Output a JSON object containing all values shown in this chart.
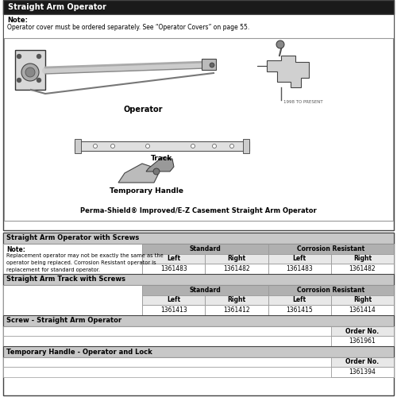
{
  "title": "Straight Arm Operator",
  "note_label": "Note:",
  "note_text": "Operator cover must be ordered separately. See “Operator Covers” on page 55.",
  "image_caption": "Perma-Shield® Improved/E-Z Casement Straight Arm Operator",
  "operator_label": "Operator",
  "track_label": "Track",
  "handle_label": "Temporary Handle",
  "year_label": "1998 TO PRESENT",
  "table1_title": "Straight Arm Operator with Screws",
  "table1_note_label": "Note:",
  "table1_note_lines": [
    "Replacement operator may not be exactly the same as the",
    "operator being replaced. Corrosion Resistant operator is",
    "replacement for standard operator."
  ],
  "table1_col_headers": [
    "Standard",
    "Corrosion Resistant"
  ],
  "table1_sub_headers": [
    "Left",
    "Right",
    "Left",
    "Right"
  ],
  "table1_values": [
    "1361483",
    "1361482",
    "1361483",
    "1361482"
  ],
  "table2_title": "Straight Arm Track with Screws",
  "table2_col_headers": [
    "Standard",
    "Corrosion Resistant"
  ],
  "table2_sub_headers": [
    "Left",
    "Right",
    "Left",
    "Right"
  ],
  "table2_values": [
    "1361413",
    "1361412",
    "1361415",
    "1361414"
  ],
  "table3_title": "Screw - Straight Arm Operator",
  "table3_order_label": "Order No.",
  "table3_value": "1361961",
  "table4_title": "Temporary Handle - Operator and Lock",
  "table4_order_label": "Order No.",
  "table4_value": "1361394",
  "bg_white": "#ffffff",
  "header_dark": "#1a1a1a",
  "section_gray": "#c8c8c8",
  "col_gray": "#b0b0b0",
  "row_light": "#e8e8e8",
  "border_dark": "#444444",
  "border_light": "#999999"
}
